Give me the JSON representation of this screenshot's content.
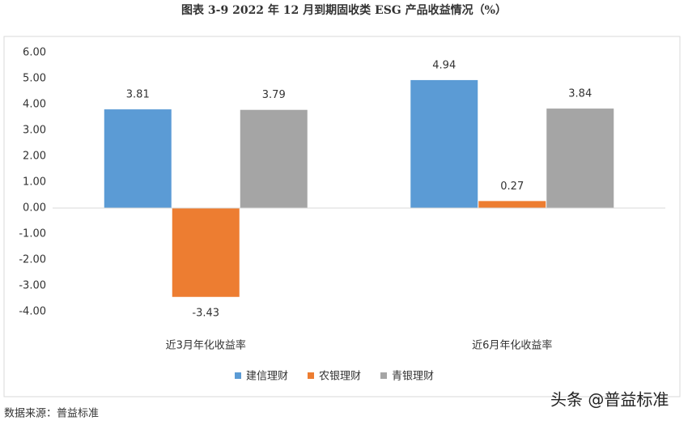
{
  "chart_data": {
    "type": "bar",
    "title": "图表 3-9  2022 年 12 月到期固收类 ESG 产品收益情况（%）",
    "categories": [
      "近3月年化收益率",
      "近6月年化收益率"
    ],
    "series": [
      {
        "name": "建信理财",
        "color": "#5b9bd5",
        "values": [
          3.81,
          4.94
        ]
      },
      {
        "name": "农银理财",
        "color": "#ed7d31",
        "values": [
          -3.43,
          0.27
        ]
      },
      {
        "name": "青银理财",
        "color": "#a5a5a5",
        "values": [
          3.79,
          3.84
        ]
      }
    ],
    "ylim": [
      -4,
      6
    ],
    "yticks": [
      {
        "value": -4,
        "label": "-4.00"
      },
      {
        "value": -3,
        "label": "-3.00"
      },
      {
        "value": -2,
        "label": "-2.00"
      },
      {
        "value": -1,
        "label": "-1.00"
      },
      {
        "value": 0,
        "label": "0.00"
      },
      {
        "value": 1,
        "label": "1.00"
      },
      {
        "value": 2,
        "label": "2.00"
      },
      {
        "value": 3,
        "label": "3.00"
      },
      {
        "value": 4,
        "label": "4.00"
      },
      {
        "value": 5,
        "label": "5.00"
      },
      {
        "value": 6,
        "label": "6.00"
      }
    ],
    "grid": false,
    "legend": "bottom",
    "source": "数据来源：普益标准",
    "watermark": "头条 @普益标准"
  }
}
